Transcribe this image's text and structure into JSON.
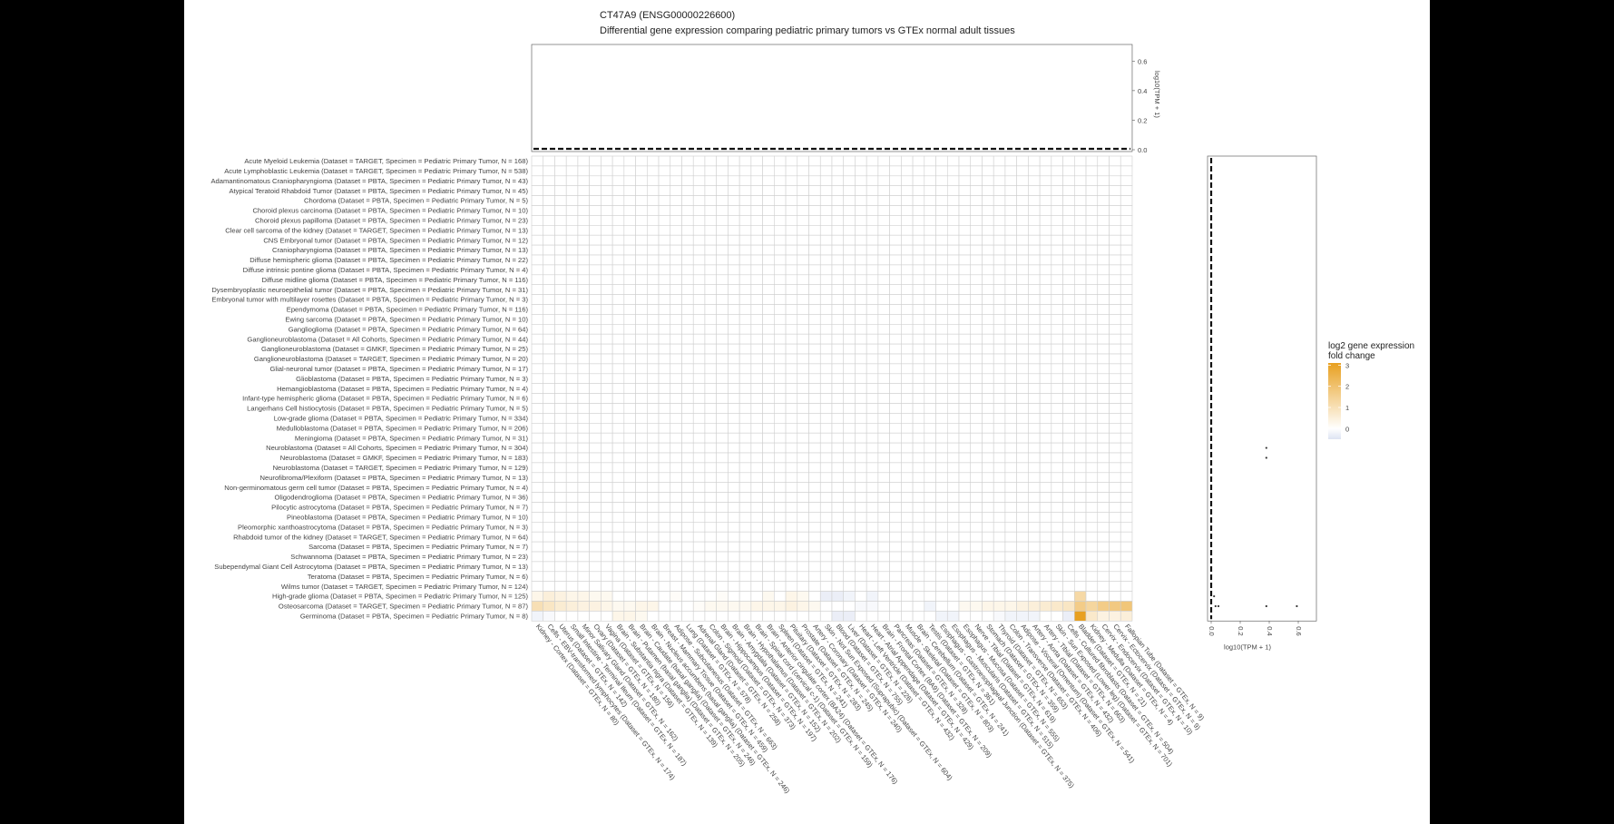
{
  "chart_data": {
    "type": "heatmap",
    "title": "CT47A9 (ENSG00000226600)",
    "subtitle": "Differential gene expression comparing pediatric primary tumors vs GTEx normal adult tissues",
    "rows": [
      "Acute Myeloid Leukemia (Dataset = TARGET, Specimen = Pediatric Primary Tumor, N = 168)",
      "Acute Lymphoblastic Leukemia (Dataset = TARGET, Specimen = Pediatric Primary Tumor, N = 538)",
      "Adamantinomatous Craniopharyngioma (Dataset = PBTA, Specimen = Pediatric Primary Tumor, N = 43)",
      "Atypical Teratoid Rhabdoid Tumor (Dataset = PBTA, Specimen = Pediatric Primary Tumor, N = 45)",
      "Chordoma (Dataset = PBTA, Specimen = Pediatric Primary Tumor, N = 5)",
      "Choroid plexus carcinoma (Dataset = PBTA, Specimen = Pediatric Primary Tumor, N = 10)",
      "Choroid plexus papilloma (Dataset = PBTA, Specimen = Pediatric Primary Tumor, N = 23)",
      "Clear cell sarcoma of the kidney (Dataset = TARGET, Specimen = Pediatric Primary Tumor, N = 13)",
      "CNS Embryonal tumor (Dataset = PBTA, Specimen = Pediatric Primary Tumor, N = 12)",
      "Craniopharyngioma (Dataset = PBTA, Specimen = Pediatric Primary Tumor, N = 13)",
      "Diffuse hemispheric glioma (Dataset = PBTA, Specimen = Pediatric Primary Tumor, N = 22)",
      "Diffuse intrinsic pontine glioma (Dataset = PBTA, Specimen = Pediatric Primary Tumor, N = 4)",
      "Diffuse midline glioma (Dataset = PBTA, Specimen = Pediatric Primary Tumor, N = 116)",
      "Dysembryoplastic neuroepithelial tumor (Dataset = PBTA, Specimen = Pediatric Primary Tumor, N = 31)",
      "Embryonal tumor with multilayer rosettes (Dataset = PBTA, Specimen = Pediatric Primary Tumor, N = 3)",
      "Ependymoma (Dataset = PBTA, Specimen = Pediatric Primary Tumor, N = 116)",
      "Ewing sarcoma (Dataset = PBTA, Specimen = Pediatric Primary Tumor, N = 10)",
      "Ganglioglioma (Dataset = PBTA, Specimen = Pediatric Primary Tumor, N = 64)",
      "Ganglioneuroblastoma (Dataset = All Cohorts, Specimen = Pediatric Primary Tumor, N = 44)",
      "Ganglioneuroblastoma (Dataset = GMKF, Specimen = Pediatric Primary Tumor, N = 25)",
      "Ganglioneuroblastoma (Dataset = TARGET, Specimen = Pediatric Primary Tumor, N = 20)",
      "Glial-neuronal tumor (Dataset = PBTA, Specimen = Pediatric Primary Tumor, N = 17)",
      "Glioblastoma (Dataset = PBTA, Specimen = Pediatric Primary Tumor, N = 3)",
      "Hemangioblastoma (Dataset = PBTA, Specimen = Pediatric Primary Tumor, N = 4)",
      "Infant-type hemispheric glioma (Dataset = PBTA, Specimen = Pediatric Primary Tumor, N = 6)",
      "Langerhans Cell histiocytosis (Dataset = PBTA, Specimen = Pediatric Primary Tumor, N = 5)",
      "Low-grade glioma (Dataset = PBTA, Specimen = Pediatric Primary Tumor, N = 334)",
      "Medulloblastoma (Dataset = PBTA, Specimen = Pediatric Primary Tumor, N = 206)",
      "Meningioma (Dataset = PBTA, Specimen = Pediatric Primary Tumor, N = 31)",
      "Neuroblastoma (Dataset = All Cohorts, Specimen = Pediatric Primary Tumor, N = 304)",
      "Neuroblastoma (Dataset = GMKF, Specimen = Pediatric Primary Tumor, N = 183)",
      "Neuroblastoma (Dataset = TARGET, Specimen = Pediatric Primary Tumor, N = 129)",
      "Neurofibroma/Plexiform (Dataset = PBTA, Specimen = Pediatric Primary Tumor, N = 13)",
      "Non-germinomatous germ cell tumor (Dataset = PBTA, Specimen = Pediatric Primary Tumor, N = 4)",
      "Oligodendroglioma (Dataset = PBTA, Specimen = Pediatric Primary Tumor, N = 36)",
      "Pilocytic astrocytoma (Dataset = PBTA, Specimen = Pediatric Primary Tumor, N = 7)",
      "Pineoblastoma (Dataset = PBTA, Specimen = Pediatric Primary Tumor, N = 10)",
      "Pleomorphic xanthoastrocytoma (Dataset = PBTA, Specimen = Pediatric Primary Tumor, N = 3)",
      "Rhabdoid tumor of the kidney (Dataset = TARGET, Specimen = Pediatric Primary Tumor, N = 64)",
      "Sarcoma (Dataset = PBTA, Specimen = Pediatric Primary Tumor, N = 7)",
      "Schwannoma (Dataset = PBTA, Specimen = Pediatric Primary Tumor, N = 23)",
      "Subependymal Giant Cell Astrocytoma (Dataset = PBTA, Specimen = Pediatric Primary Tumor, N = 13)",
      "Teratoma (Dataset = PBTA, Specimen = Pediatric Primary Tumor, N = 6)",
      "Wilms tumor (Dataset = TARGET, Specimen = Pediatric Primary Tumor, N = 124)",
      "High-grade glioma (Dataset = PBTA, Specimen = Pediatric Primary Tumor, N = 125)",
      "Osteosarcoma (Dataset = TARGET, Specimen = Pediatric Primary Tumor, N = 87)",
      "Germinoma (Dataset = PBTA, Specimen = Pediatric Primary Tumor, N = 8)"
    ],
    "columns": [
      "Kidney - Cortex (Dataset = GTEx, N = 80)",
      "Cells - EBV-transformed lymphocytes (Dataset = GTEx, N = 174)",
      "Uterus (Dataset = GTEx, N = 142)",
      "Small Intestine - Terminal Ileum (Dataset = GTEx, N = 187)",
      "Minor Salivary Gland (Dataset = GTEx, N = 162)",
      "Ovary (Dataset = GTEx, N = 180)",
      "Vagina (Dataset = GTEx, N = 156)",
      "Brain - Substantia nigra (Dataset = GTEx, N = 139)",
      "Brain - Putamen (basal ganglia) (Dataset = GTEx, N = 205)",
      "Brain - Caudate (basal ganglia) (Dataset = GTEx, N = 246)",
      "Brain - Nucleus accumbens (basal ganglia) (Dataset = GTEx, N = 246)",
      "Breast - Mammary Tissue (Dataset = GTEx, N = 459)",
      "Adipose - Subcutaneous (Dataset = GTEx, N = 663)",
      "Lung (Dataset = GTEx, N = 578)",
      "Adrenal Gland (Dataset = GTEx, N = 258)",
      "Colon - Sigmoid (Dataset = GTEx, N = 373)",
      "Brain - Hippocampus (Dataset = GTEx, N = 197)",
      "Brain - Amygdala (Dataset = GTEx, N = 152)",
      "Brain - Hypothalamus (Dataset = GTEx, N = 202)",
      "Brain - Spinal cord (cervical c-1) (Dataset = GTEx, N = 159)",
      "Brain - Anterior cingulate cortex (BA24) (Dataset = GTEx, N = 176)",
      "Spleen (Dataset = GTEx, N = 241)",
      "Pituitary (Dataset = GTEx, N = 283)",
      "Prostate (Dataset = GTEx, N = 245)",
      "Artery - Coronary (Dataset = GTEx, N = 240)",
      "Skin - Not Sun Exposed (Suprapubic) (Dataset = GTEx, N = 604)",
      "Blood (Dataset = GTEx, N = 755)",
      "Liver (Dataset = GTEx, N = 226)",
      "Heart - Left Ventricle (Dataset = GTEx, N = 432)",
      "Heart - Atrial Appendage (Dataset = GTEx, N = 429)",
      "Brain - Frontal Cortex (BA9) (Dataset = GTEx, N = 209)",
      "Pancreas (Dataset = GTEx, N = 328)",
      "Muscle - Skeletal (Dataset = GTEx, N = 803)",
      "Brain - Cerebellum (Dataset = GTEx, N = 241)",
      "Testis (Dataset = GTEx, N = 361)",
      "Esophagus - Gastroesophageal Junction (Dataset = GTEx, N = 375)",
      "Esophagus - Muscularis (Dataset = GTEx, N = 515)",
      "Esophagus - Mucosa (Dataset = GTEx, N = 555)",
      "Nerve - Tibial (Dataset = GTEx, N = 619)",
      "Stomach (Dataset = GTEx, N = 359)",
      "Thyroid (Dataset = GTEx, N = 653)",
      "Colon - Transverse (Dataset = GTEx, N = 406)",
      "Adipose - Visceral (Omentum) (Dataset = GTEx, N = 541)",
      "Artery - Aorta (Dataset = GTEx, N = 432)",
      "Artery - Tibial (Dataset = GTEx, N = 663)",
      "Skin - Sun Exposed (Lower leg) (Dataset = GTEx, N = 701)",
      "Cells - Cultured fibroblasts (Dataset = GTEx, N = 504)",
      "Bladder (Dataset = GTEx, N = 21)",
      "Kidney - Medulla (Dataset = GTEx, N = 4)",
      "Cervix - Endocervix (Dataset = GTEx, N = 10)",
      "Cervix - Ectocervix (Dataset = GTEx, N = 9)",
      "Fallopian Tube (Dataset = GTEx, N = 9)"
    ],
    "highlighted_cells": [
      {
        "row": 44,
        "col": 0,
        "value": 0.3
      },
      {
        "row": 44,
        "col": 1,
        "value": 0.5
      },
      {
        "row": 44,
        "col": 2,
        "value": 0.4
      },
      {
        "row": 44,
        "col": 3,
        "value": 0.3
      },
      {
        "row": 44,
        "col": 4,
        "value": 0.3
      },
      {
        "row": 44,
        "col": 5,
        "value": 0.2
      },
      {
        "row": 44,
        "col": 6,
        "value": 0.2
      },
      {
        "row": 44,
        "col": 12,
        "value": 0.1
      },
      {
        "row": 44,
        "col": 16,
        "value": 0.1
      },
      {
        "row": 44,
        "col": 20,
        "value": 0.2
      },
      {
        "row": 44,
        "col": 22,
        "value": 0.3
      },
      {
        "row": 44,
        "col": 23,
        "value": 0.2
      },
      {
        "row": 44,
        "col": 25,
        "value": -0.3
      },
      {
        "row": 44,
        "col": 26,
        "value": -0.3
      },
      {
        "row": 44,
        "col": 27,
        "value": -0.2
      },
      {
        "row": 44,
        "col": 29,
        "value": -0.2
      },
      {
        "row": 44,
        "col": 47,
        "value": 1.2
      },
      {
        "row": 45,
        "col": 0,
        "value": 1.0
      },
      {
        "row": 45,
        "col": 1,
        "value": 0.8
      },
      {
        "row": 45,
        "col": 2,
        "value": 0.6
      },
      {
        "row": 45,
        "col": 3,
        "value": 0.5
      },
      {
        "row": 45,
        "col": 4,
        "value": 0.4
      },
      {
        "row": 45,
        "col": 5,
        "value": 0.4
      },
      {
        "row": 45,
        "col": 6,
        "value": 0.3
      },
      {
        "row": 45,
        "col": 7,
        "value": 0.2
      },
      {
        "row": 45,
        "col": 8,
        "value": 0.2
      },
      {
        "row": 45,
        "col": 9,
        "value": 0.3
      },
      {
        "row": 45,
        "col": 10,
        "value": 0.3
      },
      {
        "row": 45,
        "col": 14,
        "value": 0.1
      },
      {
        "row": 45,
        "col": 15,
        "value": 0.2
      },
      {
        "row": 45,
        "col": 16,
        "value": 0.2
      },
      {
        "row": 45,
        "col": 17,
        "value": 0.2
      },
      {
        "row": 45,
        "col": 18,
        "value": 0.2
      },
      {
        "row": 45,
        "col": 19,
        "value": 0.3
      },
      {
        "row": 45,
        "col": 20,
        "value": 0.3
      },
      {
        "row": 45,
        "col": 21,
        "value": 0.3
      },
      {
        "row": 45,
        "col": 22,
        "value": 0.4
      },
      {
        "row": 45,
        "col": 23,
        "value": 0.3
      },
      {
        "row": 45,
        "col": 24,
        "value": 0.2
      },
      {
        "row": 45,
        "col": 28,
        "value": -0.1
      },
      {
        "row": 45,
        "col": 29,
        "value": -0.1
      },
      {
        "row": 45,
        "col": 34,
        "value": -0.2
      },
      {
        "row": 45,
        "col": 37,
        "value": 0.2
      },
      {
        "row": 45,
        "col": 38,
        "value": 0.2
      },
      {
        "row": 45,
        "col": 39,
        "value": 0.3
      },
      {
        "row": 45,
        "col": 40,
        "value": 0.3
      },
      {
        "row": 45,
        "col": 41,
        "value": 0.3
      },
      {
        "row": 45,
        "col": 42,
        "value": 0.4
      },
      {
        "row": 45,
        "col": 43,
        "value": 0.5
      },
      {
        "row": 45,
        "col": 44,
        "value": 0.6
      },
      {
        "row": 45,
        "col": 45,
        "value": 0.7
      },
      {
        "row": 45,
        "col": 46,
        "value": 0.8
      },
      {
        "row": 45,
        "col": 47,
        "value": 1.6
      },
      {
        "row": 45,
        "col": 48,
        "value": 1.3
      },
      {
        "row": 45,
        "col": 49,
        "value": 1.6
      },
      {
        "row": 45,
        "col": 50,
        "value": 1.7
      },
      {
        "row": 45,
        "col": 51,
        "value": 1.8
      },
      {
        "row": 46,
        "col": 0,
        "value": -0.2
      },
      {
        "row": 46,
        "col": 1,
        "value": -0.1
      },
      {
        "row": 46,
        "col": 7,
        "value": 0.3
      },
      {
        "row": 46,
        "col": 8,
        "value": 0.3
      },
      {
        "row": 46,
        "col": 9,
        "value": 0.2
      },
      {
        "row": 46,
        "col": 26,
        "value": -0.3
      },
      {
        "row": 46,
        "col": 27,
        "value": -0.3
      },
      {
        "row": 46,
        "col": 35,
        "value": -0.2
      },
      {
        "row": 46,
        "col": 36,
        "value": -0.2
      },
      {
        "row": 46,
        "col": 40,
        "value": -0.1
      },
      {
        "row": 46,
        "col": 41,
        "value": -0.2
      },
      {
        "row": 46,
        "col": 42,
        "value": -0.2
      },
      {
        "row": 46,
        "col": 43,
        "value": -0.2
      },
      {
        "row": 46,
        "col": 46,
        "value": -0.3
      },
      {
        "row": 46,
        "col": 47,
        "value": 3.0
      },
      {
        "row": 46,
        "col": 48,
        "value": 0.7
      },
      {
        "row": 46,
        "col": 49,
        "value": 0.4
      },
      {
        "row": 46,
        "col": 50,
        "value": 0.4
      },
      {
        "row": 46,
        "col": 51,
        "value": 0.5
      }
    ],
    "top_panel": {
      "ylabel": "log10(TPM + 1)",
      "yticks": [
        "0.0",
        "0.2",
        "0.4",
        "0.6"
      ],
      "ylim": [
        0,
        0.7
      ]
    },
    "right_panel": {
      "xlabel": "log10(TPM + 1)",
      "xticks": [
        "0.0",
        "0.2",
        "0.4",
        "0.6"
      ],
      "xlim": [
        0,
        0.7
      ],
      "points": [
        {
          "row": 29,
          "x": 0.38
        },
        {
          "row": 30,
          "x": 0.38
        },
        {
          "row": 44,
          "x": 0.02
        },
        {
          "row": 45,
          "x": 0.03
        },
        {
          "row": 45,
          "x": 0.05
        },
        {
          "row": 45,
          "x": 0.38
        },
        {
          "row": 45,
          "x": 0.59
        }
      ]
    },
    "legend": {
      "title_line1": "log2 gene expression",
      "title_line2": "fold change",
      "ticks": [
        "0",
        "1",
        "2",
        "3"
      ],
      "range": [
        -0.5,
        3.1
      ],
      "colors": {
        "low": "#dde3f2",
        "mid": "#ffffff",
        "high": "#e8a020"
      },
      "position": "right"
    }
  }
}
